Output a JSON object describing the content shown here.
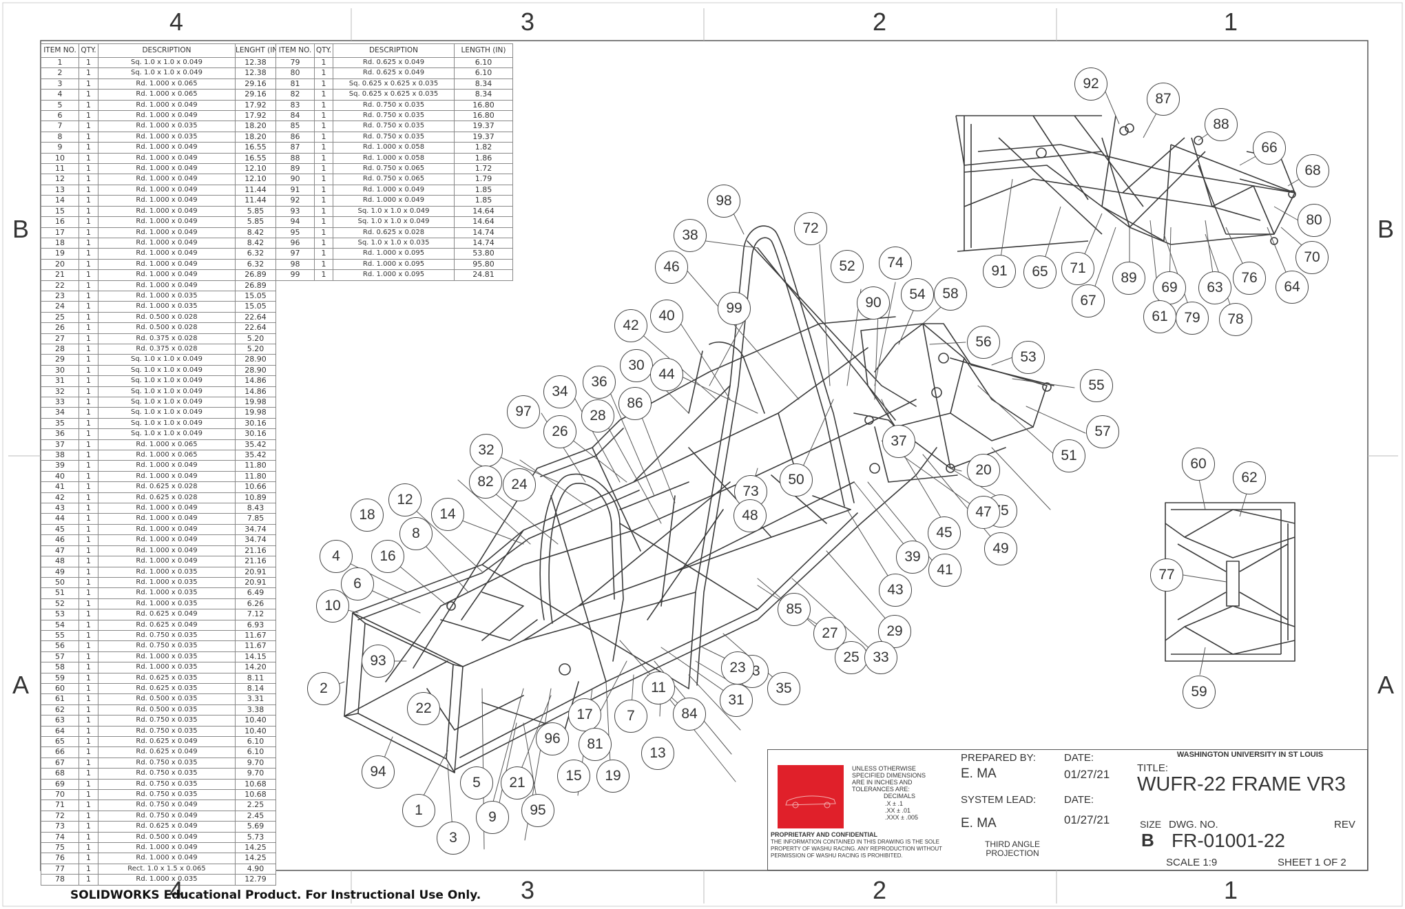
{
  "zones": {
    "top": [
      "4",
      "3",
      "2",
      "1"
    ],
    "bottom": [
      "4",
      "3",
      "2",
      "1"
    ],
    "left": [
      "B",
      "A"
    ],
    "right": [
      "B",
      "A"
    ]
  },
  "bom_headers": [
    "ITEM NO.",
    "QTY.",
    "DESCRIPTION",
    "LENGHT (IN)"
  ],
  "bom_headers_2": [
    "ITEM NO.",
    "QTY.",
    "DESCRIPTION",
    "LENGTH (IN)"
  ],
  "bom": [
    [
      "1",
      "1",
      "Sq. 1.0 x 1.0 x 0.049",
      "12.38"
    ],
    [
      "2",
      "1",
      "Sq. 1.0 x 1.0 x 0.049",
      "12.38"
    ],
    [
      "3",
      "1",
      "Rd. 1.000 x 0.065",
      "29.16"
    ],
    [
      "4",
      "1",
      "Rd. 1.000 x 0.065",
      "29.16"
    ],
    [
      "5",
      "1",
      "Rd. 1.000 x 0.049",
      "17.92"
    ],
    [
      "6",
      "1",
      "Rd. 1.000 x 0.049",
      "17.92"
    ],
    [
      "7",
      "1",
      "Rd. 1.000 x 0.035",
      "18.20"
    ],
    [
      "8",
      "1",
      "Rd. 1.000 x 0.035",
      "18.20"
    ],
    [
      "9",
      "1",
      "Rd. 1.000 x 0.049",
      "16.55"
    ],
    [
      "10",
      "1",
      "Rd. 1.000 x 0.049",
      "16.55"
    ],
    [
      "11",
      "1",
      "Rd. 1.000 x 0.049",
      "12.10"
    ],
    [
      "12",
      "1",
      "Rd. 1.000 x 0.049",
      "12.10"
    ],
    [
      "13",
      "1",
      "Rd. 1.000 x 0.049",
      "11.44"
    ],
    [
      "14",
      "1",
      "Rd. 1.000 x 0.049",
      "11.44"
    ],
    [
      "15",
      "1",
      "Rd. 1.000 x 0.049",
      "5.85"
    ],
    [
      "16",
      "1",
      "Rd. 1.000 x 0.049",
      "5.85"
    ],
    [
      "17",
      "1",
      "Rd. 1.000 x 0.049",
      "8.42"
    ],
    [
      "18",
      "1",
      "Rd. 1.000 x 0.049",
      "8.42"
    ],
    [
      "19",
      "1",
      "Rd. 1.000 x 0.049",
      "6.32"
    ],
    [
      "20",
      "1",
      "Rd. 1.000 x 0.049",
      "6.32"
    ],
    [
      "21",
      "1",
      "Rd. 1.000 x 0.049",
      "26.89"
    ],
    [
      "22",
      "1",
      "Rd. 1.000 x 0.049",
      "26.89"
    ],
    [
      "23",
      "1",
      "Rd. 1.000 x 0.035",
      "15.05"
    ],
    [
      "24",
      "1",
      "Rd. 1.000 x 0.035",
      "15.05"
    ],
    [
      "25",
      "1",
      "Rd. 0.500 x 0.028",
      "22.64"
    ],
    [
      "26",
      "1",
      "Rd. 0.500 x 0.028",
      "22.64"
    ],
    [
      "27",
      "1",
      "Rd. 0.375 x 0.028",
      "5.20"
    ],
    [
      "28",
      "1",
      "Rd. 0.375 x 0.028",
      "5.20"
    ],
    [
      "29",
      "1",
      "Sq. 1.0 x 1.0 x 0.049",
      "28.90"
    ],
    [
      "30",
      "1",
      "Sq. 1.0 x 1.0 x 0.049",
      "28.90"
    ],
    [
      "31",
      "1",
      "Sq. 1.0 x 1.0 x 0.049",
      "14.86"
    ],
    [
      "32",
      "1",
      "Sq. 1.0 x 1.0 x 0.049",
      "14.86"
    ],
    [
      "33",
      "1",
      "Sq. 1.0 x 1.0 x 0.049",
      "19.98"
    ],
    [
      "34",
      "1",
      "Sq. 1.0 x 1.0 x 0.049",
      "19.98"
    ],
    [
      "35",
      "1",
      "Sq. 1.0 x 1.0 x 0.049",
      "30.16"
    ],
    [
      "36",
      "1",
      "Sq. 1.0 x 1.0 x 0.049",
      "30.16"
    ],
    [
      "37",
      "1",
      "Rd. 1.000 x 0.065",
      "35.42"
    ],
    [
      "38",
      "1",
      "Rd. 1.000 x 0.065",
      "35.42"
    ],
    [
      "39",
      "1",
      "Rd. 1.000 x 0.049",
      "11.80"
    ],
    [
      "40",
      "1",
      "Rd. 1.000 x 0.049",
      "11.80"
    ],
    [
      "41",
      "1",
      "Rd. 0.625 x 0.028",
      "10.66"
    ],
    [
      "42",
      "1",
      "Rd. 0.625 x 0.028",
      "10.89"
    ],
    [
      "43",
      "1",
      "Rd. 1.000 x 0.049",
      "8.43"
    ],
    [
      "44",
      "1",
      "Rd. 1.000 x 0.049",
      "7.85"
    ],
    [
      "45",
      "1",
      "Rd. 1.000 x 0.049",
      "34.74"
    ],
    [
      "46",
      "1",
      "Rd. 1.000 x 0.049",
      "34.74"
    ],
    [
      "47",
      "1",
      "Rd. 1.000 x 0.049",
      "21.16"
    ],
    [
      "48",
      "1",
      "Rd. 1.000 x 0.049",
      "21.16"
    ],
    [
      "49",
      "1",
      "Rd. 1.000 x 0.035",
      "20.91"
    ],
    [
      "50",
      "1",
      "Rd. 1.000 x 0.035",
      "20.91"
    ],
    [
      "51",
      "1",
      "Rd. 1.000 x 0.035",
      "6.49"
    ],
    [
      "52",
      "1",
      "Rd. 1.000 x 0.035",
      "6.26"
    ],
    [
      "53",
      "1",
      "Rd. 0.625 x 0.049",
      "7.12"
    ],
    [
      "54",
      "1",
      "Rd. 0.625 x 0.049",
      "6.93"
    ],
    [
      "55",
      "1",
      "Rd. 0.750 x 0.035",
      "11.67"
    ],
    [
      "56",
      "1",
      "Rd. 0.750 x 0.035",
      "11.67"
    ],
    [
      "57",
      "1",
      "Rd. 1.000 x 0.035",
      "14.15"
    ],
    [
      "58",
      "1",
      "Rd. 1.000 x 0.035",
      "14.20"
    ],
    [
      "59",
      "1",
      "Rd. 0.625 x 0.035",
      "8.11"
    ],
    [
      "60",
      "1",
      "Rd. 0.625 x 0.035",
      "8.14"
    ],
    [
      "61",
      "1",
      "Rd. 0.500 x 0.035",
      "3.31"
    ],
    [
      "62",
      "1",
      "Rd. 0.500 x 0.035",
      "3.38"
    ],
    [
      "63",
      "1",
      "Rd. 0.750 x 0.035",
      "10.40"
    ],
    [
      "64",
      "1",
      "Rd. 0.750 x 0.035",
      "10.40"
    ],
    [
      "65",
      "1",
      "Rd. 0.625 x 0.049",
      "6.10"
    ],
    [
      "66",
      "1",
      "Rd. 0.625 x 0.049",
      "6.10"
    ],
    [
      "67",
      "1",
      "Rd. 0.750 x 0.035",
      "9.70"
    ],
    [
      "68",
      "1",
      "Rd. 0.750 x 0.035",
      "9.70"
    ],
    [
      "69",
      "1",
      "Rd. 0.750 x 0.035",
      "10.68"
    ],
    [
      "70",
      "1",
      "Rd. 0.750 x 0.035",
      "10.68"
    ],
    [
      "71",
      "1",
      "Rd. 0.750 x 0.049",
      "2.25"
    ],
    [
      "72",
      "1",
      "Rd. 0.750 x 0.049",
      "2.45"
    ],
    [
      "73",
      "1",
      "Rd. 0.625 x 0.049",
      "5.69"
    ],
    [
      "74",
      "1",
      "Rd. 0.500 x 0.049",
      "5.73"
    ],
    [
      "75",
      "1",
      "Rd. 1.000 x 0.049",
      "14.25"
    ],
    [
      "76",
      "1",
      "Rd. 1.000 x 0.049",
      "14.25"
    ],
    [
      "77",
      "1",
      "Rect. 1.0 x 1.5 x 0.065",
      "4.90"
    ],
    [
      "78",
      "1",
      "Rd. 1.000 x 0.035",
      "12.79"
    ]
  ],
  "bom2": [
    [
      "79",
      "1",
      "Rd. 0.625 x 0.049",
      "6.10"
    ],
    [
      "80",
      "1",
      "Rd. 0.625 x 0.049",
      "6.10"
    ],
    [
      "81",
      "1",
      "Sq. 0.625 x 0.625 x 0.035",
      "8.34"
    ],
    [
      "82",
      "1",
      "Sq. 0.625 x 0.625 x 0.035",
      "8.34"
    ],
    [
      "83",
      "1",
      "Rd. 0.750 x 0.035",
      "16.80"
    ],
    [
      "84",
      "1",
      "Rd. 0.750 x 0.035",
      "16.80"
    ],
    [
      "85",
      "1",
      "Rd. 0.750 x 0.035",
      "19.37"
    ],
    [
      "86",
      "1",
      "Rd. 0.750 x 0.035",
      "19.37"
    ],
    [
      "87",
      "1",
      "Rd. 1.000 x 0.058",
      "1.82"
    ],
    [
      "88",
      "1",
      "Rd. 1.000 x 0.058",
      "1.86"
    ],
    [
      "89",
      "1",
      "Rd. 0.750 x 0.065",
      "1.72"
    ],
    [
      "90",
      "1",
      "Rd. 0.750 x 0.065",
      "1.79"
    ],
    [
      "91",
      "1",
      "Rd. 1.000 x 0.049",
      "1.85"
    ],
    [
      "92",
      "1",
      "Rd. 1.000 x 0.049",
      "1.85"
    ],
    [
      "93",
      "1",
      "Sq. 1.0 x 1.0 x 0.049",
      "14.64"
    ],
    [
      "94",
      "1",
      "Sq. 1.0 x 1.0 x 0.049",
      "14.64"
    ],
    [
      "95",
      "1",
      "Rd. 0.625 x 0.028",
      "14.74"
    ],
    [
      "96",
      "1",
      "Sq. 1.0 x 1.0 x 0.035",
      "14.74"
    ],
    [
      "97",
      "1",
      "Rd. 1.000 x 0.095",
      "53.80"
    ],
    [
      "98",
      "1",
      "Rd. 1.000 x 0.095",
      "95.80"
    ],
    [
      "99",
      "1",
      "Rd. 1.000 x 0.095",
      "24.81"
    ]
  ],
  "title_block": {
    "tolerances": "UNLESS OTHERWISE SPECIFIED DIMENSIONS ARE IN INCHES AND TOLERANCES ARE:",
    "decimals": "DECIMALS",
    "tol1": ".X ± .1",
    "tol2": ".XX ± .01",
    "tol3": ".XXX ± .005",
    "proprietary_title": "PROPRIETARY AND CONFIDENTIAL",
    "proprietary_text": "THE INFORMATION CONTAINED IN THIS DRAWING IS THE SOLE PROPERTY OF WASHU RACING. ANY REPRODUCTION WITHOUT PERMISSION OF WASHU RACING IS PROHIBITED.",
    "prepared_label": "PREPARED BY:",
    "prepared_value": "E. MA",
    "date_label": "DATE:",
    "date_value": "01/27/21",
    "lead_label": "SYSTEM LEAD:",
    "lead_value": "E. MA",
    "date2_label": "DATE:",
    "date2_value": "01/27/21",
    "projection": "THIRD ANGLE PROJECTION",
    "org": "WASHINGTON UNIVERSITY IN ST LOUIS",
    "title_label": "TITLE:",
    "title_value": "WUFR-22 FRAME VR3",
    "size_label": "SIZE",
    "size_value": "B",
    "dwg_label": "DWG. NO.",
    "dwg_value": "FR-01001-22",
    "rev_label": "REV",
    "scale": "SCALE 1:9",
    "sheet": "SHEET 1 OF 2",
    "logo_color": "#e0202a"
  },
  "footer": "SOLIDWORKS Educational Product. For Instructional Use Only.",
  "balloons": [
    {
      "n": "98"
    },
    {
      "n": "72"
    },
    {
      "n": "38"
    },
    {
      "n": "46"
    },
    {
      "n": "52"
    },
    {
      "n": "74"
    },
    {
      "n": "99"
    },
    {
      "n": "90"
    },
    {
      "n": "54"
    },
    {
      "n": "58"
    },
    {
      "n": "42"
    },
    {
      "n": "40"
    },
    {
      "n": "56"
    },
    {
      "n": "53"
    },
    {
      "n": "30"
    },
    {
      "n": "44"
    },
    {
      "n": "55"
    },
    {
      "n": "34"
    },
    {
      "n": "36"
    },
    {
      "n": "86"
    },
    {
      "n": "97"
    },
    {
      "n": "28"
    },
    {
      "n": "26"
    },
    {
      "n": "57"
    },
    {
      "n": "37"
    },
    {
      "n": "51"
    },
    {
      "n": "32"
    },
    {
      "n": "24"
    },
    {
      "n": "50"
    },
    {
      "n": "73"
    },
    {
      "n": "20"
    },
    {
      "n": "82"
    },
    {
      "n": "48"
    },
    {
      "n": "12"
    },
    {
      "n": "75"
    },
    {
      "n": "18"
    },
    {
      "n": "14"
    },
    {
      "n": "47"
    },
    {
      "n": "8"
    },
    {
      "n": "45"
    },
    {
      "n": "49"
    },
    {
      "n": "4"
    },
    {
      "n": "16"
    },
    {
      "n": "39"
    },
    {
      "n": "41"
    },
    {
      "n": "6"
    },
    {
      "n": "43"
    },
    {
      "n": "10"
    },
    {
      "n": "29"
    },
    {
      "n": "27"
    },
    {
      "n": "85"
    },
    {
      "n": "93"
    },
    {
      "n": "25"
    },
    {
      "n": "33"
    },
    {
      "n": "83"
    },
    {
      "n": "23"
    },
    {
      "n": "2"
    },
    {
      "n": "11"
    },
    {
      "n": "35"
    },
    {
      "n": "22"
    },
    {
      "n": "31"
    },
    {
      "n": "17"
    },
    {
      "n": "7"
    },
    {
      "n": "84"
    },
    {
      "n": "96"
    },
    {
      "n": "81"
    },
    {
      "n": "13"
    },
    {
      "n": "94"
    },
    {
      "n": "15"
    },
    {
      "n": "19"
    },
    {
      "n": "5"
    },
    {
      "n": "21"
    },
    {
      "n": "1"
    },
    {
      "n": "9"
    },
    {
      "n": "95"
    },
    {
      "n": "3"
    },
    {
      "n": "92"
    },
    {
      "n": "87"
    },
    {
      "n": "88"
    },
    {
      "n": "66"
    },
    {
      "n": "68"
    },
    {
      "n": "80"
    },
    {
      "n": "70"
    },
    {
      "n": "64"
    },
    {
      "n": "76"
    },
    {
      "n": "63"
    },
    {
      "n": "78"
    },
    {
      "n": "79"
    },
    {
      "n": "69"
    },
    {
      "n": "61"
    },
    {
      "n": "89"
    },
    {
      "n": "67"
    },
    {
      "n": "71"
    },
    {
      "n": "65"
    },
    {
      "n": "91"
    },
    {
      "n": "60"
    },
    {
      "n": "62"
    },
    {
      "n": "77"
    },
    {
      "n": "59"
    }
  ]
}
